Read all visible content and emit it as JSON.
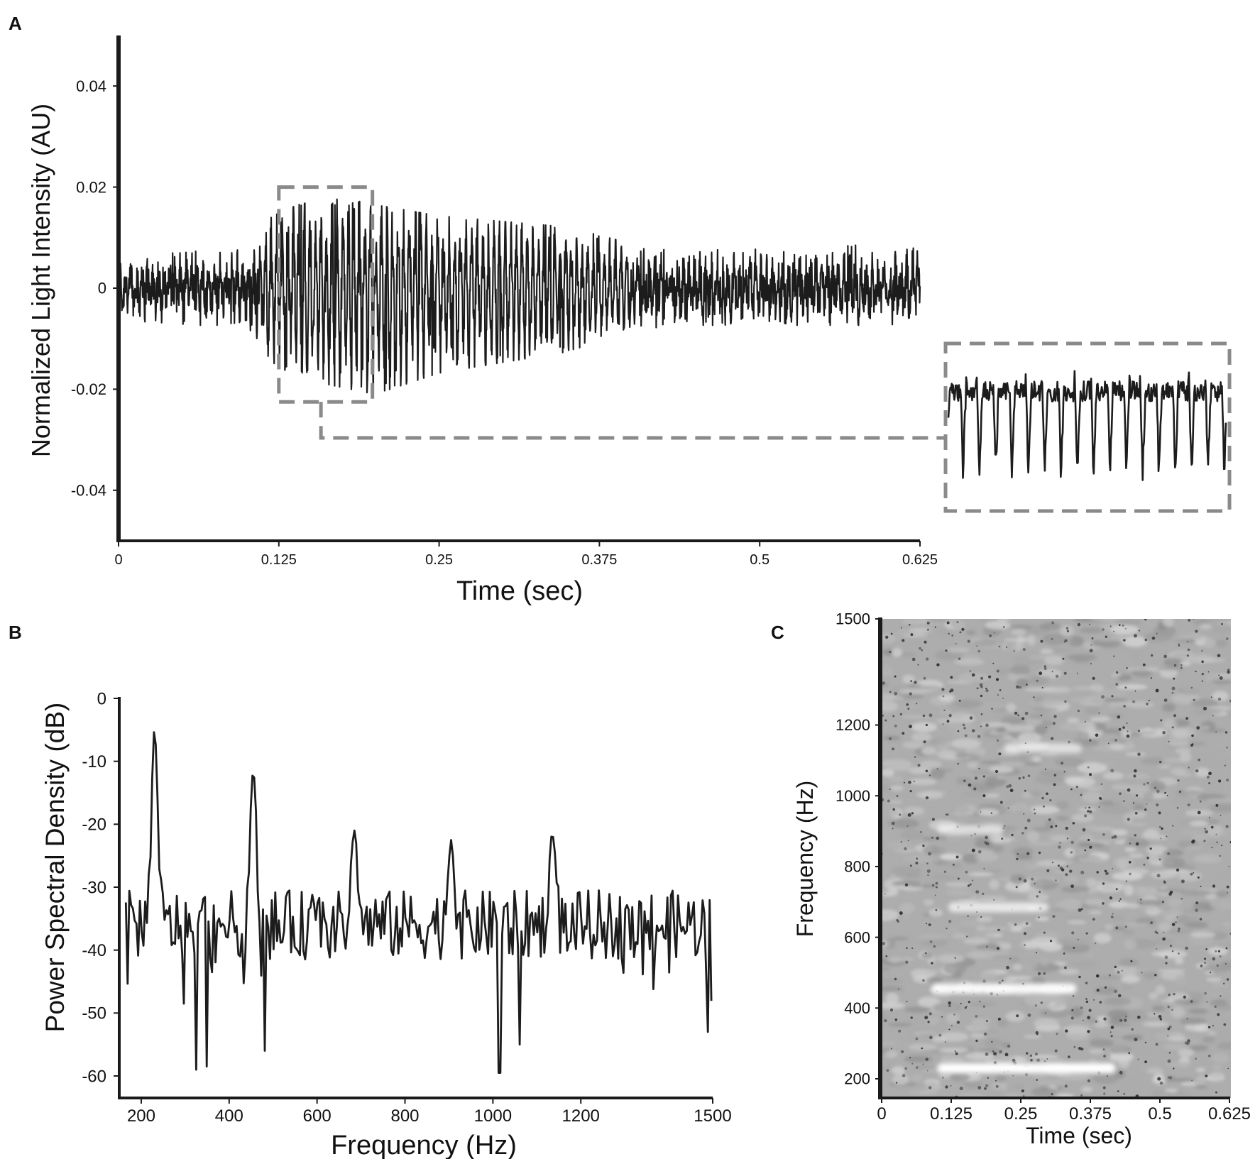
{
  "figure": {
    "panel_labels": [
      "A",
      "B",
      "C"
    ]
  },
  "chart_data": [
    {
      "panel": "A",
      "type": "line",
      "title": "",
      "xlabel": "Time (sec)",
      "ylabel": "Normalized Light Intensity (AU)",
      "xlim": [
        0,
        0.625
      ],
      "ylim": [
        -0.05,
        0.05
      ],
      "x_ticks": [
        0,
        0.125,
        0.25,
        0.375,
        0.5,
        0.625
      ],
      "x_tick_labels": [
        "0",
        "0.125",
        "0.25",
        "0.375",
        "0.5",
        "0.625"
      ],
      "y_ticks": [
        0.04,
        0.02,
        0,
        -0.02,
        -0.04
      ],
      "y_tick_labels": [
        "0.04",
        "0.02",
        "0",
        "-0.02",
        "-0.04"
      ],
      "grid": false,
      "series": [
        {
          "envelope_x": [
            0,
            0.05,
            0.1,
            0.12,
            0.14,
            0.16,
            0.18,
            0.2,
            0.25,
            0.3,
            0.35,
            0.4,
            0.45,
            0.5,
            0.55,
            0.6,
            0.625
          ],
          "envelope_upper": [
            0.006,
            0.007,
            0.007,
            0.013,
            0.015,
            0.016,
            0.016,
            0.015,
            0.013,
            0.012,
            0.011,
            0.008,
            0.007,
            0.007,
            0.008,
            0.008,
            0.009
          ],
          "envelope_lower": [
            -0.006,
            -0.007,
            -0.007,
            -0.014,
            -0.017,
            -0.018,
            -0.019,
            -0.02,
            -0.016,
            -0.014,
            -0.012,
            -0.008,
            -0.007,
            -0.007,
            -0.007,
            -0.007,
            -0.006
          ],
          "oscillation_hz": 230
        }
      ],
      "zoom_region": {
        "x": [
          0.125,
          0.198
        ],
        "y": [
          -0.0225,
          0.02
        ]
      },
      "inset": {
        "source_x": [
          0.125,
          0.198
        ],
        "oscillation_cycles": 17,
        "y_range": [
          -0.037,
          -0.016
        ]
      }
    },
    {
      "panel": "B",
      "type": "line",
      "title": "",
      "xlabel": "Frequency (Hz)",
      "ylabel": "Power Spectral Density (dB)",
      "xlim": [
        150,
        1500
      ],
      "ylim": [
        -64,
        0
      ],
      "x_ticks": [
        200,
        400,
        600,
        800,
        1000,
        1200,
        1500
      ],
      "x_tick_labels": [
        "200",
        "400",
        "600",
        "800",
        "1000",
        "1200",
        "1500"
      ],
      "y_ticks": [
        0,
        -10,
        -20,
        -30,
        -40,
        -50,
        -60
      ],
      "y_tick_labels": [
        "0",
        "-10",
        "-20",
        "-30",
        "-40",
        "-50",
        "-60"
      ],
      "grid": false,
      "series": [
        {
          "baseline_db": -36,
          "peaks": [
            {
              "x": 230,
              "y": -5
            },
            {
              "x": 455,
              "y": -11.5
            },
            {
              "x": 685,
              "y": -21
            },
            {
              "x": 905,
              "y": -22.5
            },
            {
              "x": 1135,
              "y": -21.5
            }
          ],
          "dips": [
            {
              "x": 325,
              "y": -59
            },
            {
              "x": 350,
              "y": -58.5
            },
            {
              "x": 480,
              "y": -56
            },
            {
              "x": 1015,
              "y": -59.5
            },
            {
              "x": 1060,
              "y": -55
            },
            {
              "x": 1490,
              "y": -53
            }
          ]
        }
      ]
    },
    {
      "panel": "C",
      "type": "heatmap",
      "title": "",
      "xlabel": "Time (sec)",
      "ylabel": "Frequency (Hz)",
      "xlim": [
        0,
        0.625
      ],
      "ylim": [
        150,
        1500
      ],
      "x_ticks": [
        0,
        0.125,
        0.25,
        0.375,
        0.5,
        0.625
      ],
      "x_tick_labels": [
        "0",
        "0.125",
        "0.25",
        "0.375",
        "0.5",
        "0.625"
      ],
      "y_ticks": [
        200,
        400,
        600,
        800,
        1000,
        1200,
        1500
      ],
      "y_tick_labels": [
        "200",
        "400",
        "600",
        "800",
        "1000",
        "1200",
        "1500"
      ],
      "grid": false,
      "colormap": "grayscale",
      "bands": [
        {
          "freq": 230,
          "t_start": 0.1,
          "t_end": 0.42,
          "intensity": 1.0
        },
        {
          "freq": 455,
          "t_start": 0.09,
          "t_end": 0.35,
          "intensity": 0.9
        },
        {
          "freq": 685,
          "t_start": 0.12,
          "t_end": 0.3,
          "intensity": 0.55
        },
        {
          "freq": 905,
          "t_start": 0.1,
          "t_end": 0.22,
          "intensity": 0.45
        },
        {
          "freq": 1135,
          "t_start": 0.22,
          "t_end": 0.36,
          "intensity": 0.4
        }
      ]
    }
  ]
}
